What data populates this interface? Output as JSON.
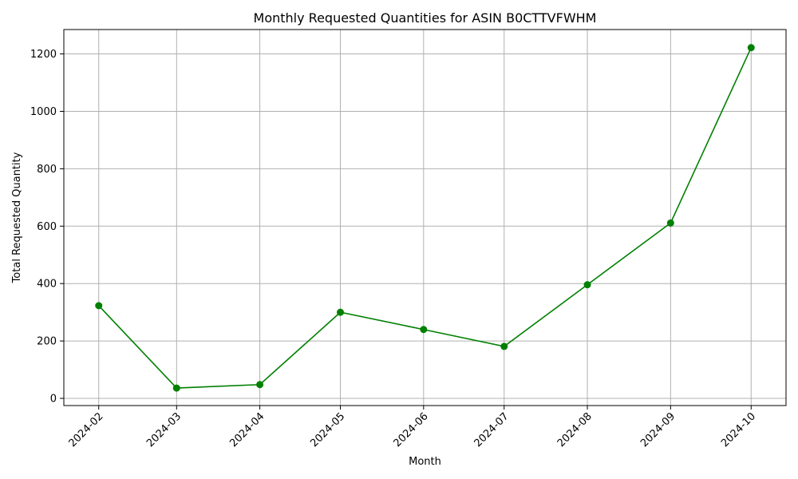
{
  "chart_data": {
    "type": "line",
    "title": "Monthly Requested Quantities for ASIN B0CTTVFWHM",
    "xlabel": "Month",
    "ylabel": "Total Requested Quantity",
    "x": [
      "2024-02-01",
      "2024-03-01",
      "2024-04-01",
      "2024-05-01",
      "2024-06-01",
      "2024-07-01",
      "2024-08-01",
      "2024-09-01",
      "2024-10-01"
    ],
    "x_tick_labels": [
      "2024-02",
      "2024-03",
      "2024-04",
      "2024-05",
      "2024-06",
      "2024-07",
      "2024-08",
      "2024-09",
      "2024-10"
    ],
    "series": [
      {
        "values": [
          323,
          36,
          48,
          300,
          240,
          181,
          396,
          611,
          1222
        ],
        "color": "#008000",
        "marker": "circle"
      }
    ],
    "y_ticks": [
      0,
      200,
      400,
      600,
      800,
      1000,
      1200
    ],
    "ylim": [
      -25,
      1285
    ],
    "xlim": [
      "2024-01-19",
      "2024-10-14"
    ],
    "grid": true,
    "legend": "none"
  }
}
